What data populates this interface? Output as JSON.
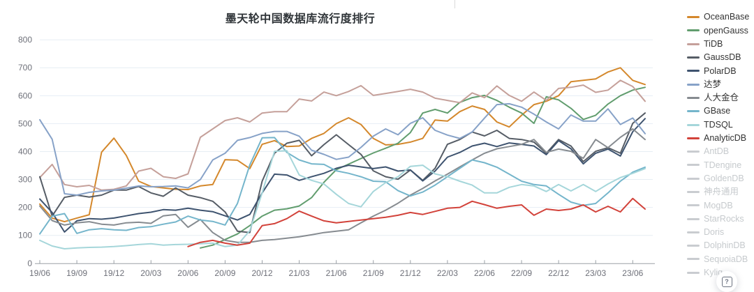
{
  "chart_data": {
    "type": "line",
    "title": "墨天轮中国数据库流行度排行",
    "xlabel": "",
    "ylabel": "",
    "ylim": [
      0,
      800
    ],
    "y_ticks": [
      0,
      100,
      200,
      300,
      400,
      500,
      600,
      700,
      800
    ],
    "grid": true,
    "legend_position": "right",
    "x_tick_labels": [
      "19/06",
      "19/09",
      "19/12",
      "20/03",
      "20/06",
      "20/09",
      "20/12",
      "21/03",
      "21/06",
      "21/09",
      "21/12",
      "22/03",
      "22/06",
      "22/09",
      "22/12",
      "23/03",
      "23/06"
    ],
    "x_months_note": "50 monthly points from 2019/06 to 2023/07; axis ticks every 3rd point",
    "points_per_series": 50,
    "series": [
      {
        "name": "OceanBase",
        "color": "#d4882c",
        "values": [
          212,
          162,
          149,
          162,
          174,
          398,
          448,
          386,
          294,
          275,
          270,
          265,
          264,
          277,
          282,
          371,
          369,
          339,
          426,
          439,
          418,
          420,
          447,
          465,
          500,
          521,
          497,
          447,
          424,
          426,
          434,
          447,
          513,
          509,
          543,
          563,
          551,
          506,
          488,
          530,
          568,
          580,
          600,
          650,
          655,
          660,
          685,
          700,
          655,
          640
        ]
      },
      {
        "name": "openGauss",
        "color": "#619d6e",
        "values": [
          null,
          null,
          null,
          null,
          null,
          null,
          null,
          null,
          null,
          null,
          null,
          null,
          null,
          55,
          65,
          85,
          105,
          135,
          169,
          190,
          195,
          205,
          235,
          290,
          335,
          355,
          375,
          395,
          412,
          430,
          468,
          538,
          551,
          538,
          576,
          593,
          601,
          583,
          559,
          538,
          501,
          596,
          585,
          555,
          515,
          530,
          570,
          600,
          620,
          630
        ]
      },
      {
        "name": "TiDB",
        "color": "#c5a09a",
        "values": [
          307,
          354,
          282,
          274,
          279,
          262,
          265,
          277,
          330,
          340,
          310,
          304,
          320,
          451,
          481,
          511,
          521,
          506,
          538,
          543,
          543,
          588,
          581,
          613,
          600,
          615,
          636,
          601,
          608,
          615,
          623,
          613,
          591,
          583,
          575,
          610,
          593,
          635,
          601,
          580,
          613,
          583,
          626,
          630,
          638,
          612,
          620,
          655,
          633,
          580
        ]
      },
      {
        "name": "GaussDB",
        "color": "#565d66",
        "values": [
          310,
          169,
          236,
          244,
          237,
          244,
          262,
          262,
          275,
          252,
          240,
          270,
          244,
          235,
          222,
          184,
          115,
          110,
          294,
          394,
          430,
          440,
          385,
          425,
          460,
          425,
          390,
          331,
          310,
          301,
          334,
          297,
          340,
          426,
          443,
          470,
          456,
          476,
          447,
          443,
          434,
          394,
          443,
          420,
          364,
          401,
          414,
          394,
          501,
          538
        ]
      },
      {
        "name": "PolarDB",
        "color": "#3e536f",
        "values": [
          230,
          182,
          112,
          152,
          160,
          158,
          162,
          170,
          178,
          183,
          192,
          190,
          197,
          190,
          185,
          170,
          155,
          175,
          252,
          319,
          316,
          297,
          310,
          322,
          340,
          351,
          345,
          339,
          345,
          330,
          334,
          295,
          330,
          380,
          397,
          420,
          430,
          418,
          431,
          426,
          420,
          389,
          439,
          410,
          356,
          394,
          409,
          384,
          471,
          518
        ]
      },
      {
        "name": "达梦",
        "color": "#87a2c8",
        "values": [
          514,
          444,
          249,
          244,
          254,
          259,
          262,
          269,
          277,
          274,
          275,
          277,
          270,
          300,
          370,
          394,
          440,
          450,
          465,
          472,
          472,
          455,
          405,
          390,
          372,
          380,
          415,
          455,
          481,
          460,
          501,
          521,
          476,
          459,
          447,
          470,
          520,
          568,
          571,
          559,
          534,
          506,
          481,
          531,
          509,
          509,
          553,
          497,
          520,
          464
        ]
      },
      {
        "name": "人大金仓",
        "color": "#868b90",
        "values": [
          205,
          153,
          137,
          145,
          149,
          140,
          137,
          145,
          147,
          143,
          170,
          175,
          129,
          157,
          110,
          82,
          75,
          75,
          82,
          85,
          90,
          95,
          102,
          110,
          115,
          120,
          145,
          169,
          190,
          215,
          244,
          268,
          295,
          319,
          345,
          370,
          394,
          410,
          418,
          426,
          443,
          397,
          409,
          401,
          376,
          443,
          414,
          451,
          481,
          443
        ]
      },
      {
        "name": "GBase",
        "color": "#74b5cb",
        "values": [
          105,
          169,
          178,
          107,
          120,
          124,
          120,
          118,
          128,
          131,
          140,
          148,
          169,
          155,
          150,
          137,
          214,
          352,
          449,
          450,
          397,
          370,
          356,
          354,
          331,
          322,
          310,
          294,
          292,
          260,
          241,
          255,
          280,
          310,
          340,
          370,
          360,
          344,
          319,
          294,
          282,
          277,
          247,
          219,
          207,
          214,
          252,
          294,
          326,
          344
        ]
      },
      {
        "name": "TDSQL",
        "color": "#a5d6da",
        "values": [
          82,
          62,
          52,
          55,
          57,
          58,
          60,
          63,
          67,
          70,
          65,
          67,
          68,
          70,
          72,
          60,
          65,
          117,
          252,
          401,
          403,
          316,
          297,
          284,
          247,
          214,
          202,
          257,
          289,
          310,
          347,
          351,
          320,
          310,
          294,
          280,
          252,
          252,
          272,
          282,
          277,
          257,
          282,
          259,
          282,
          257,
          284,
          307,
          322,
          339
        ]
      },
      {
        "name": "AnalyticDB",
        "color": "#d2423a",
        "values": [
          null,
          null,
          null,
          null,
          null,
          null,
          null,
          null,
          null,
          null,
          null,
          null,
          60,
          75,
          82,
          72,
          65,
          72,
          135,
          142,
          160,
          187,
          169,
          152,
          145,
          150,
          155,
          160,
          165,
          172,
          182,
          175,
          186,
          197,
          200,
          222,
          210,
          197,
          204,
          209,
          172,
          194,
          189,
          194,
          209,
          184,
          204,
          184,
          232,
          194
        ]
      }
    ],
    "legend": {
      "active": [
        "OceanBase",
        "openGauss",
        "TiDB",
        "GaussDB",
        "PolarDB",
        "达梦",
        "人大金仓",
        "GBase",
        "TDSQL",
        "AnalyticDB"
      ],
      "inactive": [
        "AntDB",
        "TDengine",
        "GoldenDB",
        "神舟通用",
        "MogDB",
        "StarRocks",
        "Doris",
        "DolphinDB",
        "SequoiaDB",
        "Kylig"
      ],
      "inactive_color": "#c9ccd0"
    },
    "axis_label_color": "#6E7079",
    "axis_line_color": "#9aa0a6",
    "gridline_color": "#e6edf4"
  },
  "help_fab": {
    "icon_char": "?"
  }
}
